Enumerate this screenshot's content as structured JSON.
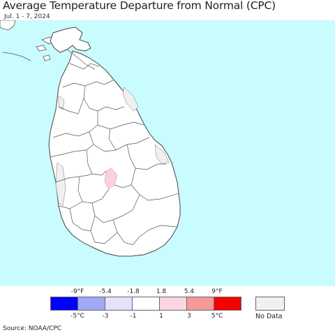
{
  "title": "Average Temperature Departure from Normal (CPC)",
  "subtitle": "Jul. 1 - 7, 2024",
  "colors": {
    "ocean": "#c8fcff",
    "land": "#ffffff",
    "no_data": "#f1eff0",
    "slight_warm": "#fbd0df",
    "border": "#555555"
  },
  "legend": {
    "fahrenheit_ticks": [
      "-9°F",
      "-5.4",
      "-1.8",
      "1.8",
      "5.4",
      "9°F"
    ],
    "celsius_ticks": [
      "-5°C",
      "-3",
      "-1",
      "1",
      "3",
      "5°C"
    ],
    "swatches": [
      "#0000ff",
      "#a3a8f7",
      "#e2e3fa",
      "#ffffff",
      "#fbd5e3",
      "#f59a9a",
      "#f50000"
    ],
    "no_data_label": "No Data",
    "no_data_color": "#f1eff0"
  },
  "source": "Source: NOAA/CPC"
}
